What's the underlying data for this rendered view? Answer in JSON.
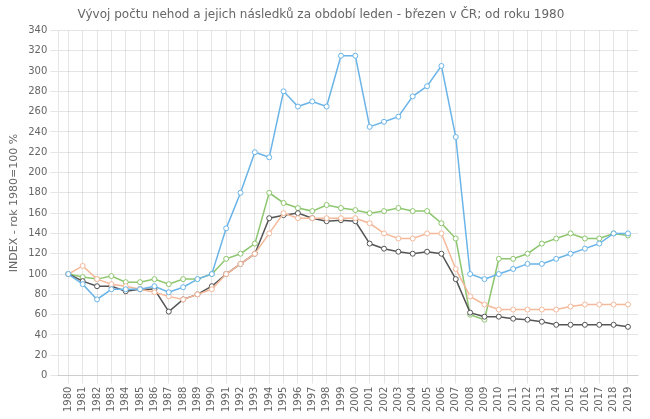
{
  "chart_data": {
    "type": "line",
    "title": "Vývoj počtu nehod a jejich následků za období leden - březen v ČR; od roku 1980",
    "ylabel": "INDEX - rok 1980=100 %",
    "x": [
      1980,
      1981,
      1982,
      1983,
      1984,
      1985,
      1986,
      1987,
      1988,
      1989,
      1990,
      1991,
      1992,
      1993,
      1994,
      1995,
      1996,
      1997,
      1998,
      1999,
      2000,
      2001,
      2002,
      2003,
      2004,
      2005,
      2006,
      2007,
      2008,
      2009,
      2010,
      2011,
      2012,
      2013,
      2014,
      2015,
      2016,
      2017,
      2018,
      2019
    ],
    "series": [
      {
        "color": "#6ab4e8",
        "values": [
          100,
          90,
          75,
          85,
          85,
          85,
          88,
          82,
          87,
          95,
          100,
          145,
          180,
          220,
          215,
          280,
          265,
          270,
          265,
          315,
          315,
          245,
          250,
          255,
          275,
          285,
          305,
          235,
          100,
          95,
          100,
          105,
          110,
          110,
          115,
          120,
          125,
          130,
          140,
          140
        ]
      },
      {
        "color": "#f4b89a",
        "values": [
          100,
          108,
          95,
          90,
          88,
          85,
          82,
          78,
          75,
          80,
          85,
          100,
          110,
          120,
          140,
          160,
          155,
          155,
          155,
          155,
          155,
          150,
          140,
          135,
          135,
          140,
          140,
          105,
          78,
          70,
          65,
          65,
          65,
          65,
          65,
          68,
          70,
          70,
          70,
          70
        ]
      },
      {
        "color": "#555555",
        "values": [
          100,
          93,
          88,
          88,
          83,
          85,
          85,
          63,
          75,
          80,
          88,
          100,
          110,
          120,
          155,
          158,
          160,
          155,
          152,
          153,
          152,
          130,
          125,
          122,
          120,
          122,
          120,
          95,
          62,
          58,
          58,
          56,
          55,
          53,
          50,
          50,
          50,
          50,
          50,
          48
        ]
      },
      {
        "color": "#8dc66e",
        "values": [
          100,
          97,
          95,
          98,
          92,
          92,
          95,
          90,
          95,
          95,
          100,
          115,
          120,
          130,
          180,
          170,
          165,
          162,
          168,
          165,
          163,
          160,
          162,
          165,
          162,
          162,
          150,
          135,
          60,
          55,
          115,
          115,
          120,
          130,
          135,
          140,
          135,
          135,
          140,
          138
        ]
      }
    ],
    "xlim": [
      1979.3,
      2019.7
    ],
    "xticks": [
      1980,
      1981,
      1982,
      1983,
      1984,
      1985,
      1986,
      1987,
      1988,
      1989,
      1990,
      1991,
      1992,
      1993,
      1994,
      1995,
      1996,
      1997,
      1998,
      1999,
      2000,
      2001,
      2002,
      2003,
      2004,
      2005,
      2006,
      2007,
      2008,
      2009,
      2010,
      2011,
      2012,
      2013,
      2014,
      2015,
      2016,
      2017,
      2018,
      2019
    ],
    "ylim": [
      0,
      340
    ],
    "yticks": [
      0,
      20,
      40,
      60,
      80,
      100,
      120,
      140,
      160,
      180,
      200,
      220,
      240,
      260,
      280,
      300,
      320,
      340
    ],
    "grid": true,
    "marker": "circle"
  }
}
